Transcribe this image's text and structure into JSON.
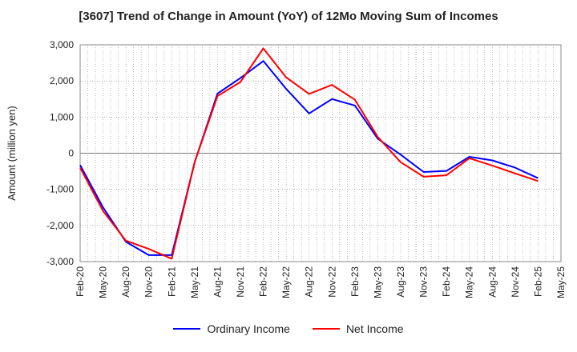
{
  "chart_data": {
    "type": "line",
    "title": "[3607]  Trend of Change in Amount (YoY) of 12Mo Moving Sum of Incomes",
    "xlabel": "",
    "ylabel": "Amount (million yen)",
    "ylim": [
      -3000,
      3000
    ],
    "yticks": [
      -3000,
      -2000,
      -1000,
      0,
      1000,
      2000,
      3000
    ],
    "ytick_labels": [
      "-3,000",
      "-2,000",
      "-1,000",
      "0",
      "1,000",
      "2,000",
      "3,000"
    ],
    "categories": [
      "Feb-20",
      "May-20",
      "Aug-20",
      "Nov-20",
      "Feb-21",
      "May-21",
      "Aug-21",
      "Nov-21",
      "Feb-22",
      "May-22",
      "Aug-22",
      "Nov-22",
      "Feb-23",
      "May-23",
      "Aug-23",
      "Nov-23",
      "Feb-24",
      "May-24",
      "Aug-24",
      "Nov-24",
      "Feb-25",
      "May-25"
    ],
    "grid": true,
    "legend_position": "bottom",
    "series": [
      {
        "name": "Ordinary Income",
        "color": "#0000ff",
        "values": [
          -330,
          -1500,
          -2450,
          -2820,
          -2820,
          -250,
          1650,
          2080,
          2550,
          1780,
          1100,
          1500,
          1320,
          400,
          -40,
          -520,
          -490,
          -100,
          -200,
          -400,
          -690,
          null
        ]
      },
      {
        "name": "Net Income",
        "color": "#ff0000",
        "values": [
          -400,
          -1600,
          -2420,
          -2650,
          -2920,
          -250,
          1580,
          1970,
          2900,
          2100,
          1640,
          1890,
          1480,
          450,
          -250,
          -650,
          -610,
          -140,
          -340,
          -560,
          -770,
          null
        ]
      }
    ]
  }
}
